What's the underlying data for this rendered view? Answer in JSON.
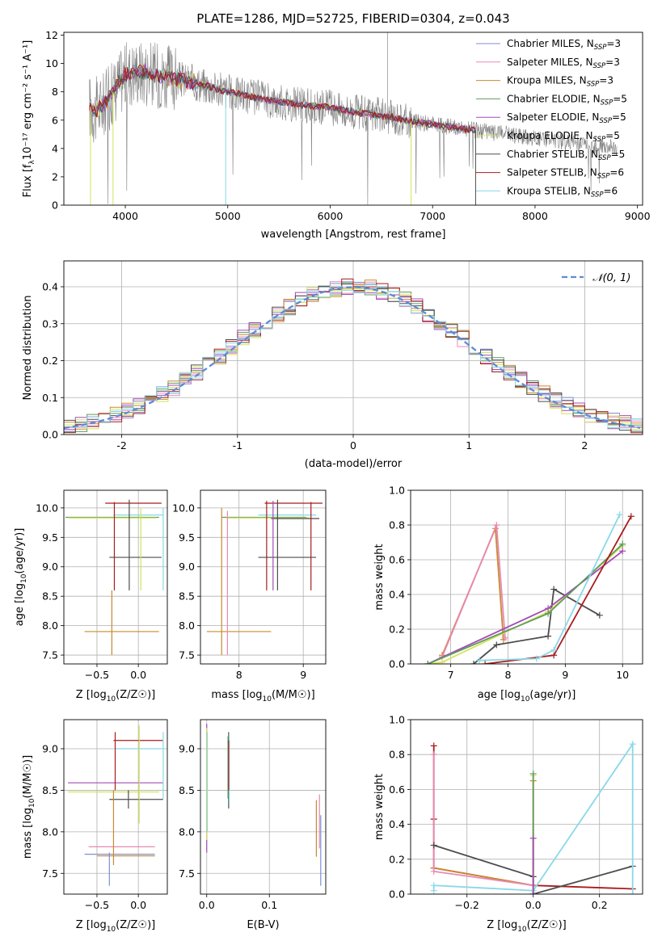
{
  "title": "PLATE=1286, MJD=52725, FIBERID=0304, z=0.043",
  "colors": [
    "#7d8fd6",
    "#e889b5",
    "#c98a2f",
    "#5f9a5f",
    "#a44bb6",
    "#d3e35a",
    "#4d4d4d",
    "#a81c1c",
    "#8ad8e8"
  ],
  "legend_labels": [
    "Chabrier MILES, N",
    "Salpeter MILES, N",
    "Kroupa MILES, N",
    "Chabrier ELODIE, N",
    "Salpeter ELODIE, N",
    "Kroupa ELODIE, N",
    "Chabrier STELIB, N",
    "Salpeter STELIB, N",
    "Kroupa STELIB, N"
  ],
  "legend_sub": "SSP",
  "legend_nssp": [
    "=3",
    "=3",
    "=3",
    "=5",
    "=5",
    "=5",
    "=5",
    "=6",
    "=6"
  ],
  "gauss_label": "𝒩(0, 1)",
  "chart_data": [
    {
      "id": "spectrum",
      "type": "line",
      "xlabel": "wavelength [Angstrom, rest frame]",
      "ylabel": "Flux [f",
      "ylabel_math": "λ10⁻¹⁷ erg cm⁻² s⁻¹ A⁻¹]",
      "xlim": [
        3400,
        9050
      ],
      "ylim": [
        0,
        12.2
      ],
      "xticks": [
        4000,
        5000,
        6000,
        7000,
        8000,
        9000
      ],
      "yticks": [
        0,
        2,
        4,
        6,
        8,
        10,
        12
      ],
      "continuum_x": [
        3650,
        3700,
        3800,
        3900,
        4000,
        4100,
        4200,
        4300,
        4400,
        4500,
        4600,
        4700,
        4800,
        4900,
        5000,
        5200,
        5400,
        5600,
        5800,
        6000,
        6200,
        6400,
        6600,
        6800,
        7000,
        7200,
        7400
      ],
      "continuum_y": [
        7.0,
        6.6,
        7.2,
        8.2,
        9.2,
        9.5,
        9.4,
        9.2,
        9.0,
        8.9,
        8.8,
        8.6,
        8.4,
        8.2,
        8.0,
        7.7,
        7.4,
        7.2,
        7.0,
        6.9,
        6.6,
        6.4,
        6.2,
        5.9,
        5.7,
        5.5,
        5.3
      ],
      "data_range": [
        3650,
        8800
      ],
      "model_range": [
        3650,
        7420
      ]
    },
    {
      "id": "residuals",
      "type": "line",
      "xlabel": "(data-model)/error",
      "ylabel": "Normed distribution",
      "xlim": [
        -2.5,
        2.5
      ],
      "ylim": [
        0,
        0.47
      ],
      "xticks": [
        -2,
        -1,
        0,
        1,
        2
      ],
      "yticks": [
        0.0,
        0.1,
        0.2,
        0.3,
        0.4
      ]
    },
    {
      "id": "age_z",
      "type": "scatter",
      "xlabel": "Z [log",
      "ylabel": "age  [log",
      "xlim": [
        -0.9,
        0.35
      ],
      "ylim": [
        7.35,
        10.3
      ],
      "xticks": [
        -0.5,
        0.0
      ],
      "xticklabels": [
        "−0.5",
        "0.0"
      ],
      "yticks": [
        7.5,
        8.0,
        8.5,
        9.0,
        9.5,
        10.0
      ],
      "hlines": [
        {
          "y": 9.84,
          "x1": -0.88,
          "x2": 0.25,
          "c": 3
        },
        {
          "y": 9.83,
          "x1": -0.84,
          "x2": 0.22,
          "c": 5
        },
        {
          "y": 10.08,
          "x1": -0.4,
          "x2": 0.28,
          "c": 7
        },
        {
          "y": 9.88,
          "x1": -0.3,
          "x2": 0.3,
          "c": 8
        },
        {
          "y": 9.16,
          "x1": -0.35,
          "x2": 0.28,
          "c": 6
        },
        {
          "y": 7.9,
          "x1": -0.65,
          "x2": 0.25,
          "c": 2
        }
      ],
      "vlines": [
        {
          "x": -0.32,
          "y1": 7.5,
          "y2": 8.6,
          "c": 2
        },
        {
          "x": -0.29,
          "y1": 8.6,
          "y2": 10.1,
          "c": 7
        },
        {
          "x": -0.11,
          "y1": 8.6,
          "y2": 10.14,
          "c": 6
        },
        {
          "x": 0.03,
          "y1": 8.6,
          "y2": 10.0,
          "c": 5
        },
        {
          "x": 0.3,
          "y1": 8.6,
          "y2": 10.0,
          "c": 8
        }
      ]
    },
    {
      "id": "age_mass",
      "type": "scatter",
      "xlabel": "mass [log",
      "ylabel": "",
      "xlim": [
        7.4,
        9.35
      ],
      "ylim": [
        7.35,
        10.3
      ],
      "xticks": [
        8,
        9
      ],
      "yticks": [
        7.5,
        8.0,
        8.5,
        9.0,
        9.5,
        10.0
      ],
      "hlines": [
        {
          "y": 9.84,
          "x1": 7.73,
          "x2": 9.05,
          "c": 3
        },
        {
          "y": 9.83,
          "x1": 7.8,
          "x2": 9.1,
          "c": 5
        },
        {
          "y": 10.08,
          "x1": 8.4,
          "x2": 9.3,
          "c": 7
        },
        {
          "y": 9.88,
          "x1": 8.3,
          "x2": 9.2,
          "c": 8
        },
        {
          "y": 9.16,
          "x1": 8.3,
          "x2": 9.2,
          "c": 6
        },
        {
          "y": 7.9,
          "x1": 7.5,
          "x2": 8.5,
          "c": 2
        },
        {
          "y": 9.82,
          "x1": 8.5,
          "x2": 9.25,
          "c": 6
        }
      ],
      "vlines": [
        {
          "x": 7.73,
          "y1": 7.5,
          "y2": 10.0,
          "c": 2
        },
        {
          "x": 7.82,
          "y1": 7.5,
          "y2": 9.95,
          "c": 1
        },
        {
          "x": 8.43,
          "y1": 8.6,
          "y2": 10.12,
          "c": 7
        },
        {
          "x": 8.53,
          "y1": 8.6,
          "y2": 10.12,
          "c": 4
        },
        {
          "x": 8.6,
          "y1": 8.6,
          "y2": 10.14,
          "c": 6
        },
        {
          "x": 9.12,
          "y1": 8.6,
          "y2": 10.1,
          "c": 7
        }
      ]
    },
    {
      "id": "weight_age",
      "type": "line",
      "xlabel": "age  [log",
      "ylabel": "mass weight",
      "xlim": [
        6.3,
        10.35
      ],
      "ylim": [
        0,
        1.0
      ],
      "xticks": [
        7,
        8,
        9,
        10
      ],
      "yticks": [
        0.0,
        0.2,
        0.4,
        0.6,
        0.8,
        1.0
      ],
      "series": [
        {
          "c": 2,
          "x": [
            6.85,
            7.78,
            7.92
          ],
          "y": [
            0.05,
            0.78,
            0.14
          ]
        },
        {
          "c": 1,
          "x": [
            6.85,
            7.8,
            7.95
          ],
          "y": [
            0.04,
            0.8,
            0.15
          ]
        },
        {
          "c": 6,
          "x": [
            7.4,
            7.8,
            8.7,
            8.8,
            9.6
          ],
          "y": [
            0.0,
            0.11,
            0.16,
            0.43,
            0.28
          ]
        },
        {
          "c": 5,
          "x": [
            6.6,
            6.85,
            8.7,
            10.0
          ],
          "y": [
            0.0,
            0.01,
            0.3,
            0.68
          ]
        },
        {
          "c": 4,
          "x": [
            6.6,
            8.7,
            10.0
          ],
          "y": [
            0.0,
            0.32,
            0.65
          ]
        },
        {
          "c": 3,
          "x": [
            6.6,
            8.7,
            10.0
          ],
          "y": [
            0.0,
            0.29,
            0.69
          ]
        },
        {
          "c": 7,
          "x": [
            7.6,
            8.8,
            10.15
          ],
          "y": [
            0.0,
            0.05,
            0.85
          ]
        },
        {
          "c": 8,
          "x": [
            7.5,
            8.5,
            8.8,
            9.95
          ],
          "y": [
            0.02,
            0.03,
            0.08,
            0.86
          ]
        }
      ]
    },
    {
      "id": "mass_z",
      "type": "scatter",
      "xlabel": "Z [log",
      "ylabel": "mass [log",
      "xlim": [
        -0.9,
        0.35
      ],
      "ylim": [
        7.25,
        9.35
      ],
      "xticks": [
        -0.5,
        0.0
      ],
      "xticklabels": [
        "−0.5",
        "0.0"
      ],
      "yticks": [
        7.5,
        8.0,
        8.5,
        9.0
      ],
      "hlines": [
        {
          "y": 8.59,
          "x1": -0.85,
          "x2": 0.3,
          "c": 4
        },
        {
          "y": 8.48,
          "x1": -0.85,
          "x2": 0.25,
          "c": 5
        },
        {
          "y": 9.1,
          "x1": -0.3,
          "x2": 0.3,
          "c": 7
        },
        {
          "y": 9.0,
          "x1": -0.28,
          "x2": 0.3,
          "c": 8
        },
        {
          "y": 8.39,
          "x1": -0.35,
          "x2": 0.3,
          "c": 6
        },
        {
          "y": 7.82,
          "x1": -0.6,
          "x2": 0.2,
          "c": 1
        },
        {
          "y": 7.73,
          "x1": -0.65,
          "x2": 0.2,
          "c": 0
        },
        {
          "y": 7.71,
          "x1": -0.5,
          "x2": 0.2,
          "c": 2
        }
      ],
      "vlines": [
        {
          "x": -0.35,
          "y1": 7.35,
          "y2": 7.75,
          "c": 0
        },
        {
          "x": -0.3,
          "y1": 7.6,
          "y2": 8.5,
          "c": 2
        },
        {
          "x": -0.28,
          "y1": 8.5,
          "y2": 9.2,
          "c": 7
        },
        {
          "x": -0.12,
          "y1": 8.28,
          "y2": 8.5,
          "c": 6
        },
        {
          "x": 0.01,
          "y1": 8.1,
          "y2": 9.28,
          "c": 5
        },
        {
          "x": 0.3,
          "y1": 8.4,
          "y2": 9.2,
          "c": 8
        }
      ]
    },
    {
      "id": "mass_ebv",
      "type": "scatter",
      "xlabel": "E(B-V)",
      "ylabel": "",
      "xlim": [
        -0.01,
        0.19
      ],
      "ylim": [
        7.25,
        9.35
      ],
      "xticks": [
        0.0,
        0.1
      ],
      "xticklabels": [
        "0.0",
        "0.1"
      ],
      "yticks": [
        7.5,
        8.0,
        8.5,
        9.0
      ],
      "vlines": [
        {
          "x": 0.0,
          "y1": 7.75,
          "y2": 9.3,
          "c": 4
        },
        {
          "x": 0.0,
          "y1": 7.9,
          "y2": 9.25,
          "c": 5
        },
        {
          "x": 0.001,
          "y1": 8.0,
          "y2": 9.2,
          "c": 8
        },
        {
          "x": 0.035,
          "y1": 8.28,
          "y2": 9.2,
          "c": 6
        },
        {
          "x": 0.036,
          "y1": 8.35,
          "y2": 9.18,
          "c": 8
        },
        {
          "x": 0.034,
          "y1": 8.4,
          "y2": 9.15,
          "c": 3
        },
        {
          "x": 0.035,
          "y1": 8.5,
          "y2": 9.1,
          "c": 7
        },
        {
          "x": 0.175,
          "y1": 7.7,
          "y2": 8.38,
          "c": 2
        },
        {
          "x": 0.18,
          "y1": 7.8,
          "y2": 8.45,
          "c": 1
        },
        {
          "x": 0.182,
          "y1": 7.35,
          "y2": 8.2,
          "c": 0
        }
      ]
    },
    {
      "id": "weight_z",
      "type": "line",
      "xlabel": "Z [log",
      "ylabel": "mass weight",
      "xlim": [
        -0.37,
        0.33
      ],
      "ylim": [
        0,
        1.0
      ],
      "xticks": [
        -0.2,
        0.0,
        0.2
      ],
      "xticklabels": [
        "−0.2",
        "0.0",
        "0.2"
      ],
      "yticks": [
        0.0,
        0.2,
        0.4,
        0.6,
        0.8,
        1.0
      ],
      "series": [
        {
          "c": 7,
          "x": [
            -0.3,
            -0.3,
            -0.3,
            0.0,
            0.3
          ],
          "y": [
            0.85,
            0.43,
            0.15,
            0.05,
            0.03
          ]
        },
        {
          "c": 2,
          "x": [
            -0.3,
            0.0,
            0.0
          ],
          "y": [
            0.15,
            0.05,
            0.65
          ]
        },
        {
          "c": 1,
          "x": [
            -0.3,
            -0.3,
            0.0
          ],
          "y": [
            0.8,
            0.13,
            0.05
          ]
        },
        {
          "c": 6,
          "x": [
            -0.3,
            0.0,
            0.0,
            0.3
          ],
          "y": [
            0.28,
            0.1,
            0.0,
            0.16
          ]
        },
        {
          "c": 5,
          "x": [
            0.0,
            0.0
          ],
          "y": [
            0.0,
            0.68
          ]
        },
        {
          "c": 8,
          "x": [
            -0.3,
            -0.3,
            0.0,
            0.3,
            0.3
          ],
          "y": [
            0.02,
            0.05,
            0.02,
            0.86,
            0.0
          ]
        },
        {
          "c": 3,
          "x": [
            0.0,
            0.0
          ],
          "y": [
            0.0,
            0.69
          ]
        },
        {
          "c": 4,
          "x": [
            0.0,
            0.0
          ],
          "y": [
            0.0,
            0.32
          ]
        }
      ]
    }
  ]
}
